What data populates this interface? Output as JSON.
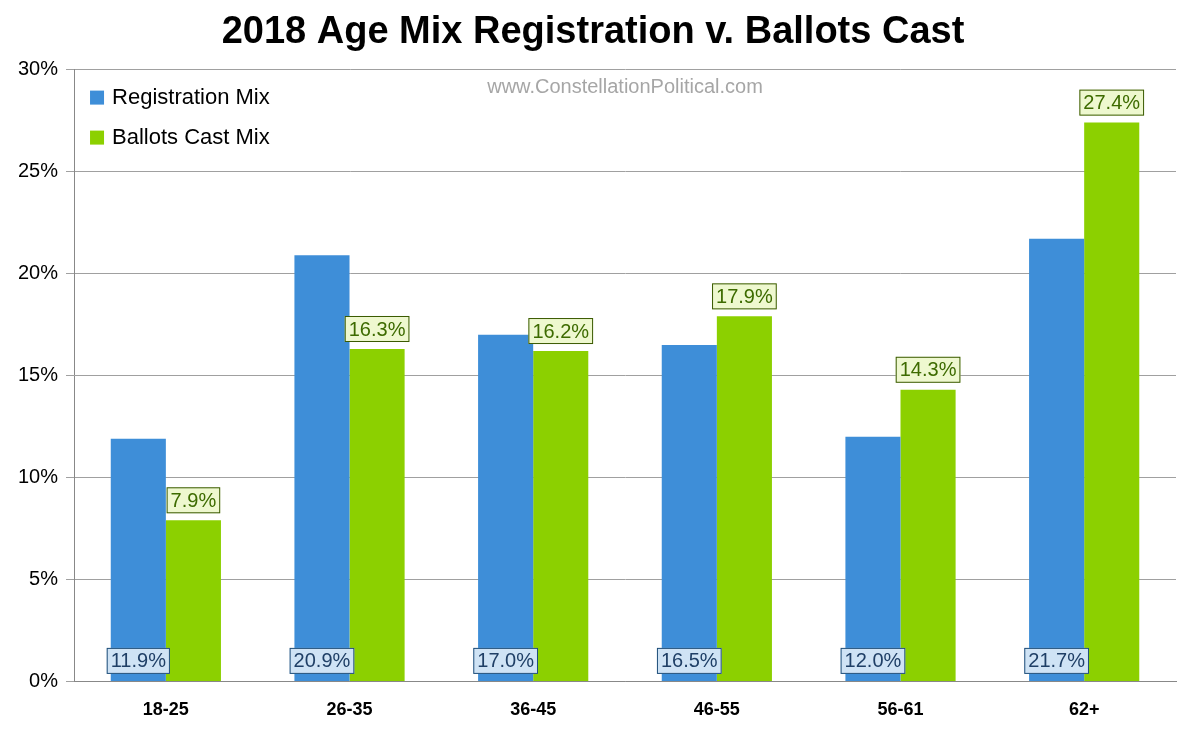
{
  "chart_data": {
    "type": "bar",
    "title": "2018 Age Mix Registration v. Ballots Cast",
    "annotations": [
      "www.ConstellationPolitical.com"
    ],
    "categories": [
      "18-25",
      "26-35",
      "36-45",
      "46-55",
      "56-61",
      "62+"
    ],
    "series": [
      {
        "name": "Registration Mix",
        "color": "#3e8ed8",
        "values": [
          11.9,
          20.9,
          17.0,
          16.5,
          12.0,
          21.7
        ],
        "value_labels": [
          "11.9%",
          "20.9%",
          "17.0%",
          "16.5%",
          "12.0%",
          "21.7%"
        ]
      },
      {
        "name": "Ballots Cast Mix",
        "color": "#8cd000",
        "values": [
          7.9,
          16.3,
          16.2,
          17.9,
          14.3,
          27.4
        ],
        "value_labels": [
          "7.9%",
          "16.3%",
          "16.2%",
          "17.9%",
          "14.3%",
          "27.4%"
        ]
      }
    ],
    "ylim": [
      0,
      30
    ],
    "yticks": [
      {
        "value": 0,
        "label": "0%"
      },
      {
        "value": 5,
        "label": "5%"
      },
      {
        "value": 10,
        "label": "10%"
      },
      {
        "value": 15,
        "label": "15%"
      },
      {
        "value": 20,
        "label": "20%"
      },
      {
        "value": 25,
        "label": "25%"
      },
      {
        "value": 30,
        "label": "30%"
      }
    ],
    "grid": true,
    "legend": "top-left",
    "data_labels": true
  }
}
